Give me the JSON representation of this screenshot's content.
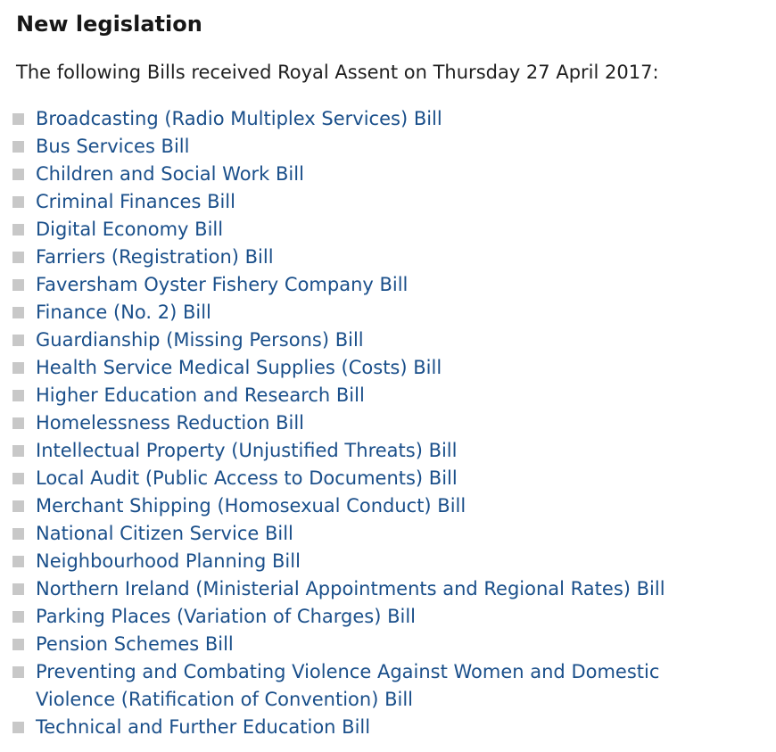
{
  "page": {
    "title": "New legislation",
    "intro": "The following Bills received Royal Assent on Thursday 27 April 2017:"
  },
  "colors": {
    "link": "#1a4f8a",
    "bullet": "#c8c8c8",
    "heading": "#171717",
    "body_text": "#1f1f1f",
    "background": "#ffffff"
  },
  "bills": [
    {
      "label": "Broadcasting (Radio Multiplex Services) Bill"
    },
    {
      "label": "Bus Services Bill"
    },
    {
      "label": "Children and Social Work Bill"
    },
    {
      "label": "Criminal Finances Bill"
    },
    {
      "label": "Digital Economy Bill"
    },
    {
      "label": "Farriers (Registration) Bill"
    },
    {
      "label": "Faversham Oyster Fishery Company Bill"
    },
    {
      "label": "Finance (No. 2) Bill"
    },
    {
      "label": "Guardianship (Missing Persons) Bill"
    },
    {
      "label": "Health Service Medical Supplies (Costs) Bill"
    },
    {
      "label": "Higher Education and Research Bill"
    },
    {
      "label": "Homelessness Reduction Bill"
    },
    {
      "label": "Intellectual Property (Unjustified Threats) Bill"
    },
    {
      "label": "Local Audit (Public Access to Documents) Bill"
    },
    {
      "label": "Merchant Shipping (Homosexual Conduct) Bill"
    },
    {
      "label": "National Citizen Service Bill"
    },
    {
      "label": "Neighbourhood Planning Bill"
    },
    {
      "label": "Northern Ireland (Ministerial Appointments and Regional Rates) Bill"
    },
    {
      "label": "Parking Places (Variation of Charges) Bill"
    },
    {
      "label": "Pension Schemes Bill"
    },
    {
      "label": "Preventing and Combating Violence Against Women and Domestic Violence (Ratification of Convention) Bill"
    },
    {
      "label": "Technical and Further Education Bill"
    }
  ]
}
